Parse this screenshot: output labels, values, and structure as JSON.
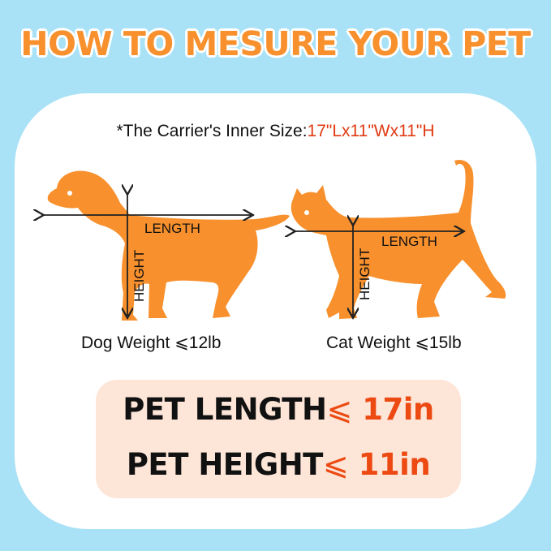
{
  "title": "HOW TO MESURE YOUR PET",
  "carrier": {
    "label": "*The Carrier's Inner Size:",
    "value": "17\"Lx11\"Wx11\"H"
  },
  "dog": {
    "length_label": "LENGTH",
    "height_label": "HEIGHT",
    "weight": "Dog Weight ⩽12lb"
  },
  "cat": {
    "length_label": "LENGTH",
    "height_label": "HEIGHT",
    "weight": "Cat Weight ⩽15lb"
  },
  "limits": {
    "length_label": "PET LENGTH",
    "length_symbol": "⩽",
    "length_value": "17in",
    "height_label": "PET HEIGHT",
    "height_symbol": "⩽",
    "height_value": "11in"
  },
  "colors": {
    "background": "#a9e1f6",
    "accent": "#f7902d",
    "highlight": "#e03a12",
    "box": "#fde5d8"
  }
}
